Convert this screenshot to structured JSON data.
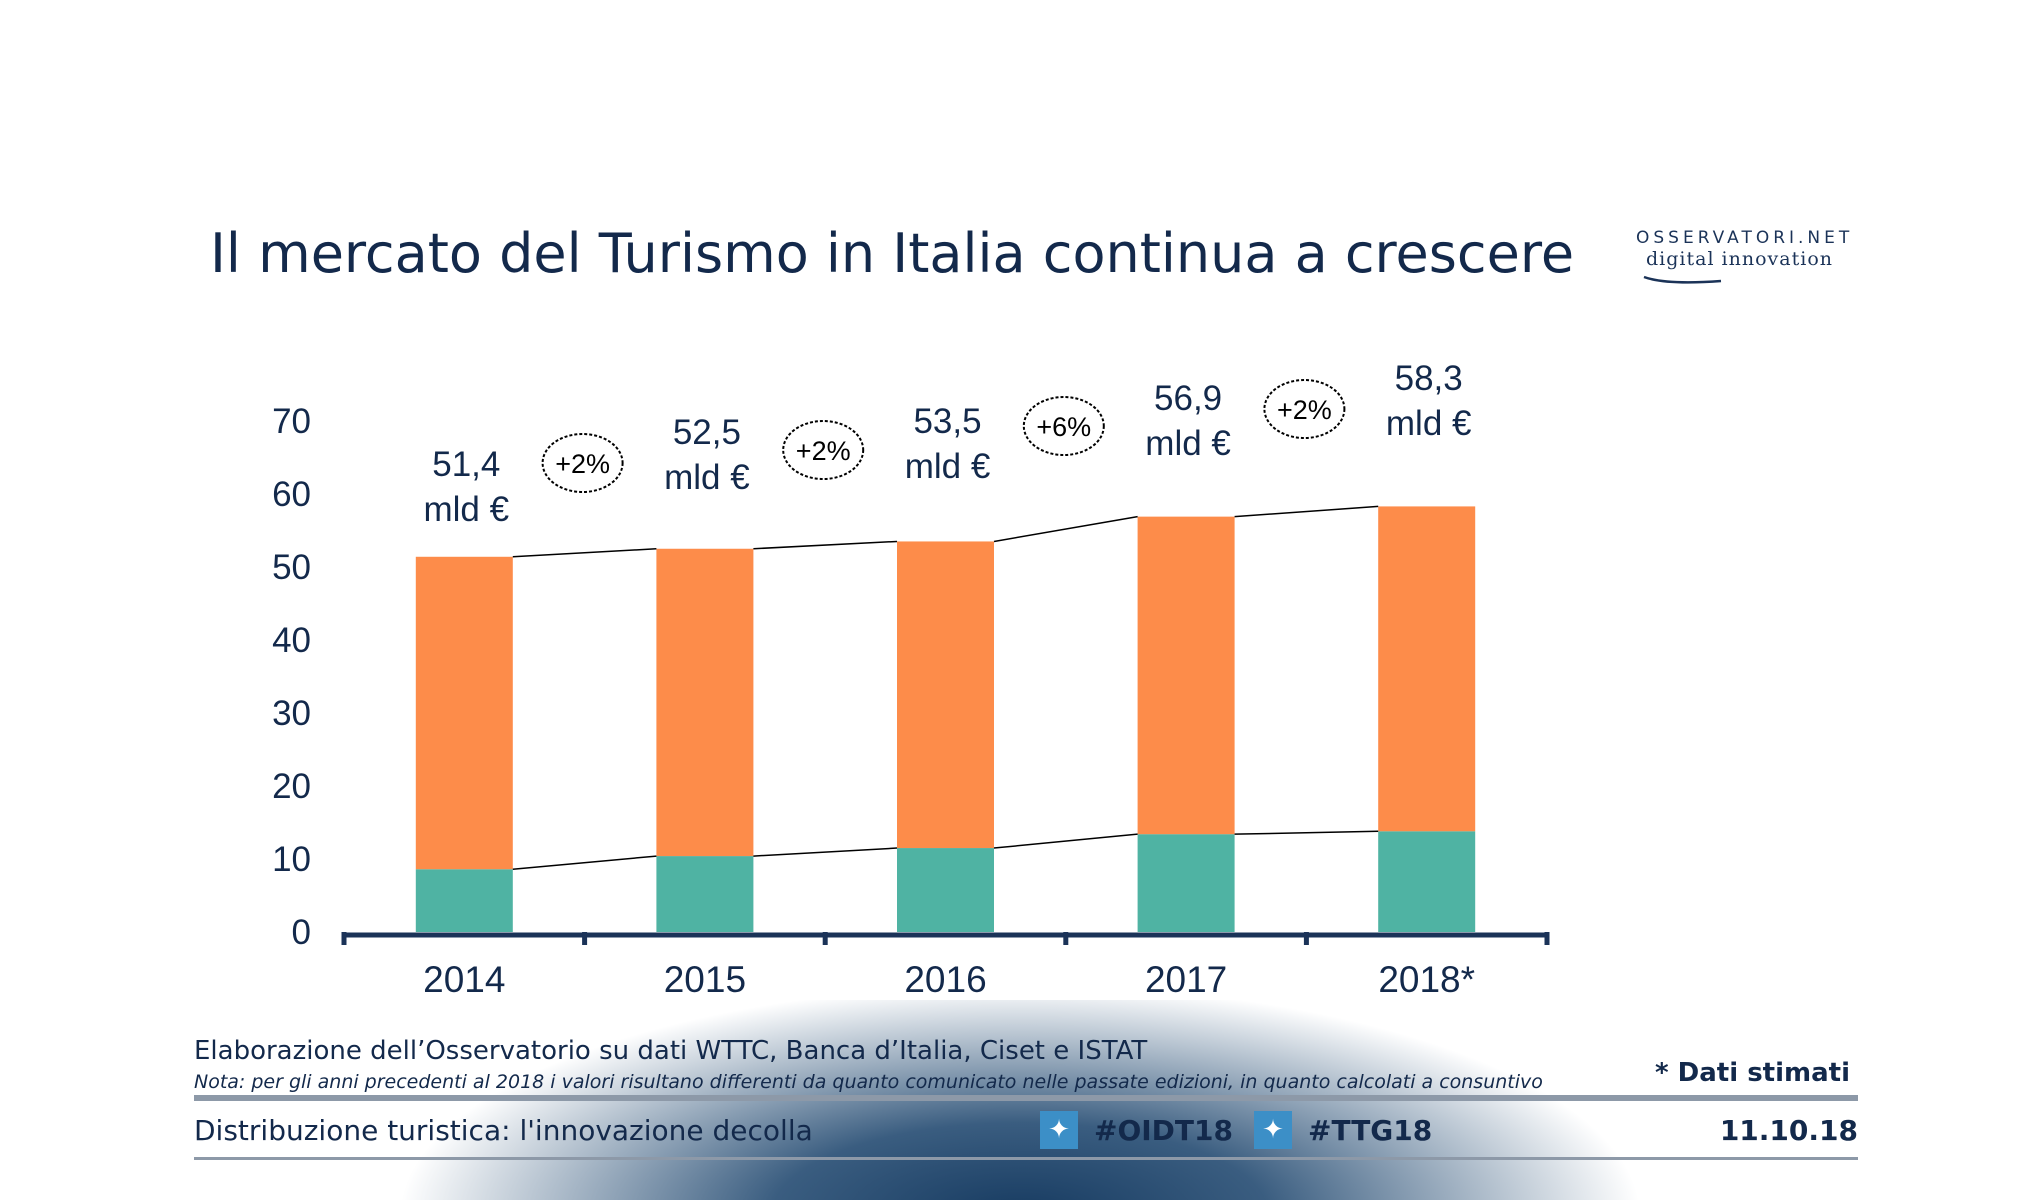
{
  "title": "Il mercato del Turismo in Italia continua a crescere",
  "logo": {
    "top": "OSSERVATORI.NET",
    "bottom": "digital innovation"
  },
  "chart_data": {
    "type": "bar",
    "stacked": true,
    "categories": [
      "2014",
      "2015",
      "2016",
      "2017",
      "2018*"
    ],
    "series": [
      {
        "values": [
          8.6,
          10.4,
          11.5,
          13.4,
          13.8
        ],
        "color": "#4fb3a3"
      },
      {
        "values": [
          42.8,
          42.1,
          42.0,
          43.5,
          44.5
        ],
        "color": "#fd8c4a"
      }
    ],
    "totals": [
      51.4,
      52.5,
      53.5,
      56.9,
      58.3
    ],
    "total_labels": [
      {
        "value": "51,4",
        "unit": "mld €"
      },
      {
        "value": "52,5",
        "unit": "mld €"
      },
      {
        "value": "53,5",
        "unit": "mld €"
      },
      {
        "value": "56,9",
        "unit": "mld €"
      },
      {
        "value": "58,3",
        "unit": "mld €"
      }
    ],
    "growth_labels": [
      "+2%",
      "+2%",
      "+6%",
      "+2%"
    ],
    "yticks": [
      "0",
      "10",
      "20",
      "30",
      "40",
      "50",
      "60",
      "70"
    ],
    "ylim": [
      0,
      70
    ],
    "grid": false,
    "axis_color": "#1b3358"
  },
  "footer": {
    "source": "Elaborazione dell’Osservatorio su dati WTTC, Banca d’Italia, Ciset e ISTAT",
    "note": "Nota: per gli anni precedenti al 2018 i valori risultano differenti da quanto comunicato nelle passate edizioni, in quanto calcolati a consuntivo",
    "estimated": "* Dati stimati",
    "event": "Distribuzione turistica: l'innovazione decolla",
    "hashtags": [
      "#OIDT18",
      "#TTG18"
    ],
    "date": "11.10.18"
  }
}
